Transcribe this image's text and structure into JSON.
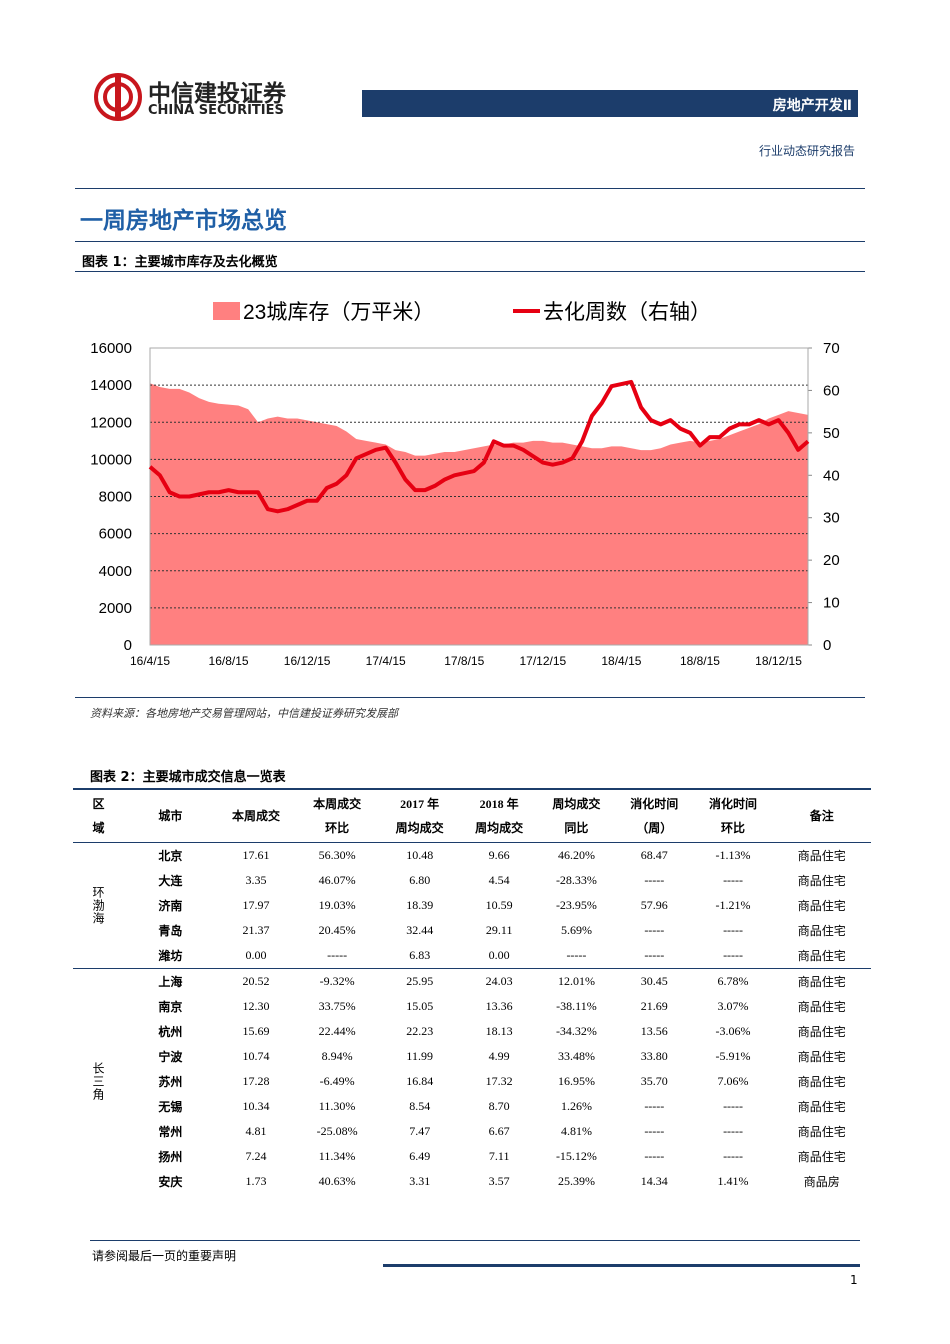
{
  "header": {
    "company": "中信建投证券",
    "company_en": "CHINA SECURITIES",
    "sector": "房地产开发Ⅱ",
    "report_type": "行业动态研究报告"
  },
  "section_title": "一周房地产市场总览",
  "figure1": {
    "caption": "图表 1：主要城市库存及去化概览",
    "source": "资料来源：各地房地产交易管理网站，中信建投证券研究发展部"
  },
  "chart_data": {
    "type": "area-line",
    "categories": [
      "16/4/15",
      null,
      null,
      null,
      null,
      null,
      null,
      null,
      "16/8/15",
      null,
      null,
      null,
      null,
      null,
      null,
      null,
      "16/12/15",
      null,
      null,
      null,
      null,
      null,
      null,
      null,
      "17/4/15",
      null,
      null,
      null,
      null,
      null,
      null,
      null,
      "17/8/15",
      null,
      null,
      null,
      null,
      null,
      null,
      null,
      "17/12/15",
      null,
      null,
      null,
      null,
      null,
      null,
      null,
      "18/4/15",
      null,
      null,
      null,
      null,
      null,
      null,
      null,
      "18/8/15",
      null,
      null,
      null,
      null,
      null,
      null,
      null,
      "18/12/15",
      null,
      null,
      null
    ],
    "series": [
      {
        "name": "23城库存（万平米）",
        "kind": "area",
        "color": "#ff8080",
        "values": [
          14100,
          13900,
          13800,
          13800,
          13600,
          13300,
          13100,
          13000,
          12950,
          12900,
          12700,
          12000,
          12200,
          12300,
          12200,
          12200,
          12100,
          12000,
          11900,
          11800,
          11500,
          11100,
          11000,
          10900,
          10800,
          10500,
          10400,
          10200,
          10200,
          10300,
          10400,
          10400,
          10500,
          10600,
          10700,
          10800,
          10800,
          10900,
          10900,
          11000,
          11000,
          10900,
          10900,
          10800,
          10700,
          10600,
          10600,
          10700,
          10700,
          10600,
          10500,
          10500,
          10600,
          10800,
          10900,
          11000,
          10900,
          11000,
          11100,
          11300,
          11500,
          11700,
          11900,
          12200,
          12400,
          12600,
          12500,
          12400
        ]
      },
      {
        "name": "去化周数（右轴）",
        "kind": "line",
        "axis": "y2",
        "color": "#e60012",
        "values": [
          42,
          40,
          36,
          35,
          35,
          35.5,
          36,
          36,
          36.5,
          36,
          36,
          36,
          32,
          31.5,
          32,
          33,
          34,
          34,
          37,
          38,
          40,
          44,
          45,
          46,
          46.5,
          43,
          39,
          36.5,
          36.5,
          37.5,
          39,
          40,
          40.5,
          41,
          43,
          48,
          47,
          47,
          46,
          44.5,
          43,
          42.5,
          43,
          44,
          48,
          54,
          57,
          61,
          61.5,
          62,
          56,
          53,
          52,
          53,
          51,
          50,
          47,
          49,
          49,
          51,
          52,
          52,
          53,
          52,
          53,
          50,
          46,
          48
        ]
      }
    ],
    "ylim": [
      0,
      16000
    ],
    "yticks": [
      0,
      2000,
      4000,
      6000,
      8000,
      10000,
      12000,
      14000,
      16000
    ],
    "y2lim": [
      0,
      70
    ],
    "y2ticks": [
      0,
      10,
      20,
      30,
      40,
      50,
      60,
      70
    ],
    "grid": true
  },
  "figure2": {
    "caption": "图表 2：主要城市成交信息一览表"
  },
  "table": {
    "headers": [
      [
        "区",
        "域"
      ],
      [
        "城市"
      ],
      [
        "本周成交"
      ],
      [
        "本周成交",
        "环比"
      ],
      [
        "2017 年",
        "周均成交"
      ],
      [
        "2018 年",
        "周均成交"
      ],
      [
        "周均成交",
        "同比"
      ],
      [
        "消化时间",
        "（周）"
      ],
      [
        "消化时间",
        "环比"
      ],
      [
        "备注"
      ]
    ],
    "groups": [
      {
        "region": "环渤海",
        "rows": [
          [
            "北京",
            "17.61",
            "56.30%",
            "10.48",
            "9.66",
            "46.20%",
            "68.47",
            "-1.13%",
            "商品住宅"
          ],
          [
            "大连",
            "3.35",
            "46.07%",
            "6.80",
            "4.54",
            "-28.33%",
            "-----",
            "-----",
            "商品住宅"
          ],
          [
            "济南",
            "17.97",
            "19.03%",
            "18.39",
            "10.59",
            "-23.95%",
            "57.96",
            "-1.21%",
            "商品住宅"
          ],
          [
            "青岛",
            "21.37",
            "20.45%",
            "32.44",
            "29.11",
            "5.69%",
            "-----",
            "-----",
            "商品住宅"
          ],
          [
            "潍坊",
            "0.00",
            "-----",
            "6.83",
            "0.00",
            "-----",
            "-----",
            "-----",
            "商品住宅"
          ]
        ]
      },
      {
        "region": "长三角",
        "rows": [
          [
            "上海",
            "20.52",
            "-9.32%",
            "25.95",
            "24.03",
            "12.01%",
            "30.45",
            "6.78%",
            "商品住宅"
          ],
          [
            "南京",
            "12.30",
            "33.75%",
            "15.05",
            "13.36",
            "-38.11%",
            "21.69",
            "3.07%",
            "商品住宅"
          ],
          [
            "杭州",
            "15.69",
            "22.44%",
            "22.23",
            "18.13",
            "-34.32%",
            "13.56",
            "-3.06%",
            "商品住宅"
          ],
          [
            "宁波",
            "10.74",
            "8.94%",
            "11.99",
            "4.99",
            "33.48%",
            "33.80",
            "-5.91%",
            "商品住宅"
          ],
          [
            "苏州",
            "17.28",
            "-6.49%",
            "16.84",
            "17.32",
            "16.95%",
            "35.70",
            "7.06%",
            "商品住宅"
          ],
          [
            "无锡",
            "10.34",
            "11.30%",
            "8.54",
            "8.70",
            "1.26%",
            "-----",
            "-----",
            "商品住宅"
          ],
          [
            "常州",
            "4.81",
            "-25.08%",
            "7.47",
            "6.67",
            "4.81%",
            "-----",
            "-----",
            "商品住宅"
          ],
          [
            "扬州",
            "7.24",
            "11.34%",
            "6.49",
            "7.11",
            "-15.12%",
            "-----",
            "-----",
            "商品住宅"
          ],
          [
            "安庆",
            "1.73",
            "40.63%",
            "3.31",
            "3.57",
            "25.39%",
            "14.34",
            "1.41%",
            "商品房"
          ]
        ]
      }
    ]
  },
  "footer": {
    "disclaimer": "请参阅最后一页的重要声明",
    "page": "1"
  }
}
